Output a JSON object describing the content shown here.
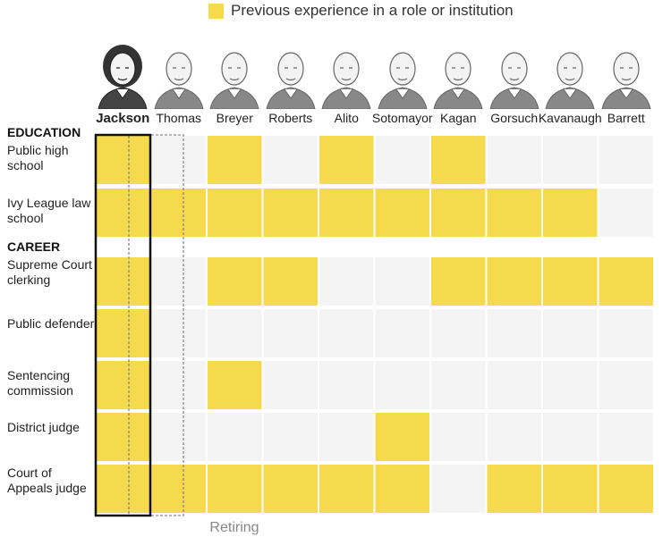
{
  "legend": {
    "label": "Previous experience in a role or institution",
    "color": "#F6DA4E"
  },
  "footer": {
    "retiring_label": "Retiring"
  },
  "colors": {
    "filled": "#F6DA4E",
    "empty": "#F4F4F4",
    "highlight_border": "#111111",
    "retiring_border": "#888888"
  },
  "sections": [
    {
      "label": "EDUCATION",
      "rows": [
        0,
        1
      ]
    },
    {
      "label": "CAREER",
      "rows": [
        2,
        3,
        4,
        5,
        6
      ]
    }
  ],
  "chart_data": {
    "type": "table",
    "title": "Previous experience in a role or institution",
    "justices": [
      "Jackson",
      "Thomas",
      "Breyer",
      "Roberts",
      "Alito",
      "Sotomayor",
      "Kagan",
      "Gorsuch",
      "Kavanaugh",
      "Barrett"
    ],
    "highlighted": "Jackson",
    "retiring": "Breyer",
    "rows": [
      {
        "label": "Public high school",
        "values": [
          1,
          0,
          1,
          0,
          1,
          0,
          1,
          0,
          0,
          0
        ]
      },
      {
        "label": "Ivy League law school",
        "values": [
          1,
          1,
          1,
          1,
          1,
          1,
          1,
          1,
          1,
          0
        ]
      },
      {
        "label": "Supreme Court clerking",
        "values": [
          1,
          0,
          1,
          1,
          0,
          0,
          1,
          1,
          1,
          1
        ]
      },
      {
        "label": "Public defender",
        "values": [
          1,
          0,
          0,
          0,
          0,
          0,
          0,
          0,
          0,
          0
        ]
      },
      {
        "label": "Sentencing commission",
        "values": [
          1,
          0,
          1,
          0,
          0,
          0,
          0,
          0,
          0,
          0
        ]
      },
      {
        "label": "District judge",
        "values": [
          1,
          0,
          0,
          0,
          0,
          1,
          0,
          0,
          0,
          0
        ]
      },
      {
        "label": "Court of Appeals judge",
        "values": [
          1,
          1,
          1,
          1,
          1,
          1,
          0,
          1,
          1,
          1
        ]
      }
    ]
  }
}
